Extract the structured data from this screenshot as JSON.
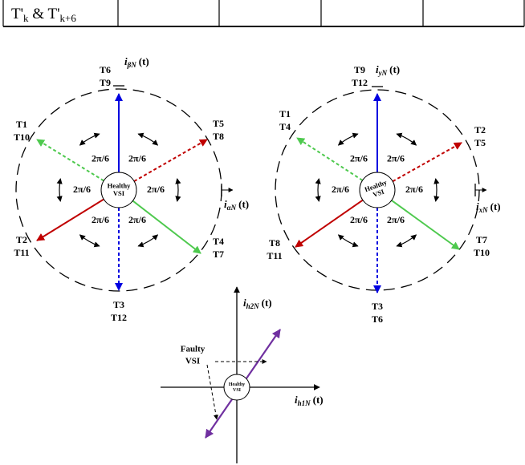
{
  "table": {
    "cell_parts": [
      "T'",
      "k",
      " & T'",
      "k+6"
    ]
  },
  "left_diagram": {
    "center": [
      "Healthy",
      "VSI"
    ],
    "vertical_axis": {
      "symbol": "i",
      "sub": "βN",
      "suffix": "(t)"
    },
    "horizontal_axis": {
      "symbol": "i",
      "sub": "αN",
      "suffix": "(t)"
    },
    "vectors": [
      {
        "labels": [
          "T6",
          "T9"
        ]
      },
      {
        "labels": [
          "T5",
          "T8"
        ]
      },
      {
        "labels": [
          "T4",
          "T7"
        ]
      },
      {
        "labels": [
          "T3",
          "T12"
        ]
      },
      {
        "labels": [
          "T2",
          "T11"
        ]
      },
      {
        "labels": [
          "T1",
          "T10"
        ]
      }
    ],
    "angles": [
      "2π/6",
      "2π/6",
      "2π/6",
      "2π/6",
      "2π/6",
      "2π/6"
    ]
  },
  "right_diagram": {
    "center": [
      "Healthy",
      "VSI"
    ],
    "vertical_axis": {
      "symbol": "i",
      "sub": "yN",
      "suffix": "(t)"
    },
    "horizontal_axis": {
      "symbol": "i",
      "sub": "xN",
      "suffix": "(t)"
    },
    "vectors": [
      {
        "labels": [
          "T9",
          "T12"
        ]
      },
      {
        "labels": [
          "T2",
          "T5"
        ]
      },
      {
        "labels": [
          "T7",
          "T10"
        ]
      },
      {
        "labels": [
          "T3",
          "T6"
        ]
      },
      {
        "labels": [
          "T8",
          "T11"
        ]
      },
      {
        "labels": [
          "T1",
          "T4"
        ]
      }
    ],
    "angles": [
      "2π/6",
      "2π/6",
      "2π/6",
      "2π/6",
      "2π/6",
      "2π/6"
    ]
  },
  "bottom_diagram": {
    "center": [
      "Healthy",
      "VSI"
    ],
    "vertical_axis": {
      "symbol": "i",
      "sub": "h2N",
      "suffix": "(t)"
    },
    "horizontal_axis": {
      "symbol": "i",
      "sub": "h1N",
      "suffix": "(t)"
    },
    "faulty": [
      "Faulty",
      "VSI"
    ]
  }
}
